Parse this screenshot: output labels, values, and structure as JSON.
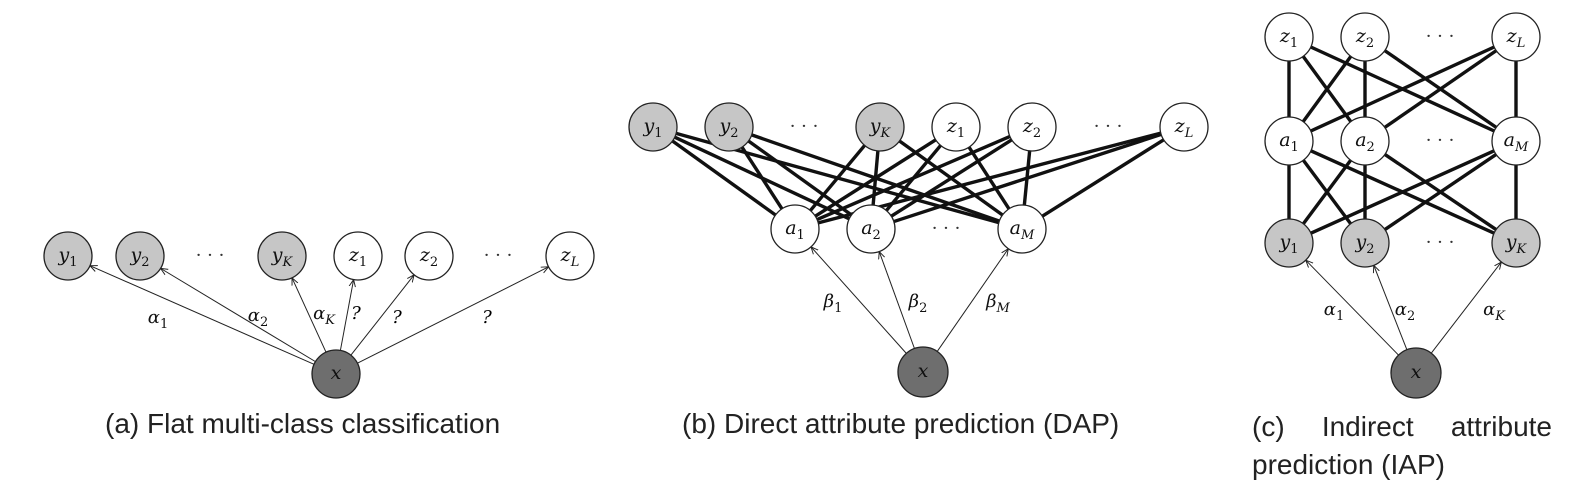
{
  "colors": {
    "label_node_fill": "#c6c6c6",
    "unseen_node_fill": "#ffffff",
    "input_node_fill": "#6e6e6e",
    "stroke": "#222222"
  },
  "panel_a": {
    "caption": "(a) Flat multi-class classification",
    "nodes": {
      "y1": {
        "base": "y",
        "sub": "1"
      },
      "y2": {
        "base": "y",
        "sub": "2"
      },
      "dots1": "· · ·",
      "yK": {
        "base": "y",
        "sub": "K"
      },
      "z1": {
        "base": "z",
        "sub": "1"
      },
      "z2": {
        "base": "z",
        "sub": "2"
      },
      "dots2": "· · ·",
      "zL": {
        "base": "z",
        "sub": "L"
      },
      "x": {
        "base": "x",
        "sub": ""
      }
    },
    "edge_labels": {
      "alpha1": {
        "base": "α",
        "sub": "1"
      },
      "alpha2": {
        "base": "α",
        "sub": "2"
      },
      "alphaK": {
        "base": "α",
        "sub": "K"
      },
      "q1": "?",
      "q2": "?",
      "q3": "?"
    }
  },
  "panel_b": {
    "caption": "(b) Direct attribute prediction (DAP)",
    "nodes": {
      "y1": {
        "base": "y",
        "sub": "1"
      },
      "y2": {
        "base": "y",
        "sub": "2"
      },
      "dots1": "· · ·",
      "yK": {
        "base": "y",
        "sub": "K"
      },
      "z1": {
        "base": "z",
        "sub": "1"
      },
      "z2": {
        "base": "z",
        "sub": "2"
      },
      "dots2": "· · ·",
      "zL": {
        "base": "z",
        "sub": "L"
      },
      "a1": {
        "base": "a",
        "sub": "1"
      },
      "a2": {
        "base": "a",
        "sub": "2"
      },
      "dots3": "· · ·",
      "aM": {
        "base": "a",
        "sub": "M"
      },
      "x": {
        "base": "x",
        "sub": ""
      }
    },
    "edge_labels": {
      "beta1": {
        "base": "β",
        "sub": "1"
      },
      "beta2": {
        "base": "β",
        "sub": "2"
      },
      "betaM": {
        "base": "β",
        "sub": "M"
      }
    }
  },
  "panel_c": {
    "caption_line1": "(c) Indirect attribute",
    "caption_line2": "prediction (IAP)",
    "nodes": {
      "z1": {
        "base": "z",
        "sub": "1"
      },
      "z2": {
        "base": "z",
        "sub": "2"
      },
      "dots1": "· · ·",
      "zL": {
        "base": "z",
        "sub": "L"
      },
      "a1": {
        "base": "a",
        "sub": "1"
      },
      "a2": {
        "base": "a",
        "sub": "2"
      },
      "dots2": "· · ·",
      "aM": {
        "base": "a",
        "sub": "M"
      },
      "y1": {
        "base": "y",
        "sub": "1"
      },
      "y2": {
        "base": "y",
        "sub": "2"
      },
      "dots3": "· · ·",
      "yK": {
        "base": "y",
        "sub": "K"
      },
      "x": {
        "base": "x",
        "sub": ""
      }
    },
    "edge_labels": {
      "alpha1": {
        "base": "α",
        "sub": "1"
      },
      "alpha2": {
        "base": "α",
        "sub": "2"
      },
      "alphaK": {
        "base": "α",
        "sub": "K"
      }
    }
  }
}
